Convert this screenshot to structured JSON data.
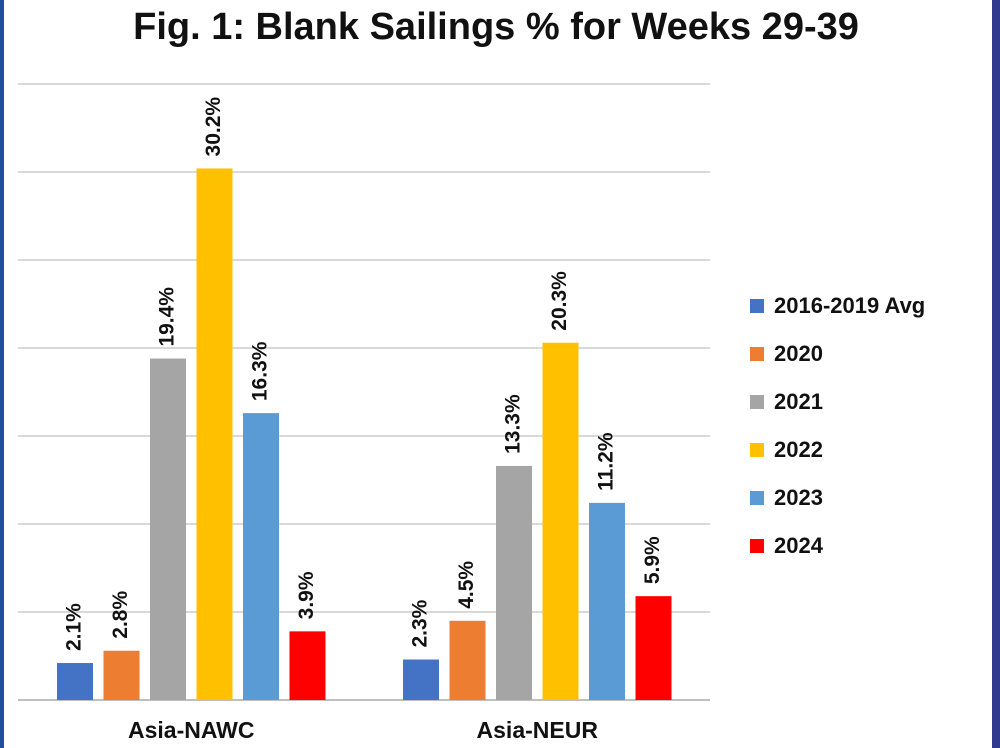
{
  "chart_data": {
    "type": "bar",
    "title": "Fig. 1: Blank Sailings % for Weeks 29-39",
    "categories": [
      "Asia-NAWC",
      "Asia-NEUR"
    ],
    "series": [
      {
        "name": "2016-2019 Avg",
        "color": "#4472c4",
        "values": [
          2.1,
          2.3
        ],
        "labels": [
          "2.1%",
          "2.3%"
        ]
      },
      {
        "name": "2020",
        "color": "#ed7d31",
        "values": [
          2.8,
          4.5
        ],
        "labels": [
          "2.8%",
          "4.5%"
        ]
      },
      {
        "name": "2021",
        "color": "#a5a5a5",
        "values": [
          19.4,
          13.3
        ],
        "labels": [
          "19.4%",
          "13.3%"
        ]
      },
      {
        "name": "2022",
        "color": "#ffc000",
        "values": [
          30.2,
          20.3
        ],
        "labels": [
          "30.2%",
          "20.3%"
        ]
      },
      {
        "name": "2023",
        "color": "#5b9bd5",
        "values": [
          16.3,
          11.2
        ],
        "labels": [
          "16.3%",
          "11.2%"
        ]
      },
      {
        "name": "2024",
        "color": "#ff0000",
        "values": [
          3.9,
          5.9
        ],
        "labels": [
          "3.9%",
          "5.9%"
        ]
      }
    ],
    "ylim": [
      0,
      35
    ],
    "grid": true,
    "legend": "right"
  }
}
